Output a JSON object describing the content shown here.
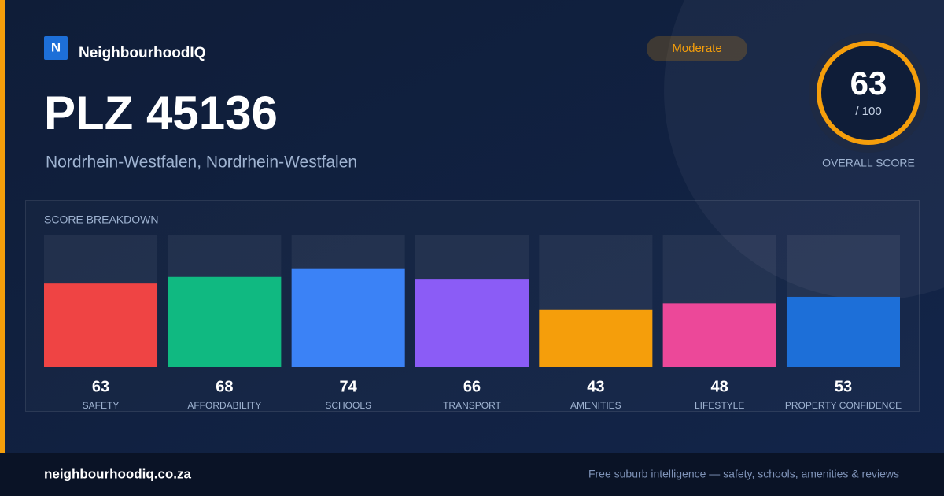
{
  "brand": {
    "logo_letter": "N",
    "name": "NeighbourhoodIQ"
  },
  "title": "PLZ 45136",
  "subtitle": "Nordrhein-Westfalen, Nordrhein-Westfalen",
  "badge": "Moderate",
  "overall": {
    "score": 63,
    "max_label": "/ 100",
    "label": "OVERALL SCORE"
  },
  "chart_data": {
    "type": "bar",
    "title": "SCORE BREAKDOWN",
    "categories": [
      "SAFETY",
      "AFFORDABILITY",
      "SCHOOLS",
      "TRANSPORT",
      "AMENITIES",
      "LIFESTYLE",
      "PROPERTY CONFIDENCE"
    ],
    "values": [
      63,
      68,
      74,
      66,
      43,
      48,
      53
    ],
    "colors": [
      "#ef4444",
      "#10b981",
      "#3b82f6",
      "#8b5cf6",
      "#f59e0b",
      "#ec4899",
      "#1d6fd8"
    ],
    "ylim": [
      0,
      100
    ]
  },
  "footer": {
    "site": "neighbourhoodiq.co.za",
    "tagline": "Free suburb intelligence — safety, schools, amenities & reviews"
  }
}
